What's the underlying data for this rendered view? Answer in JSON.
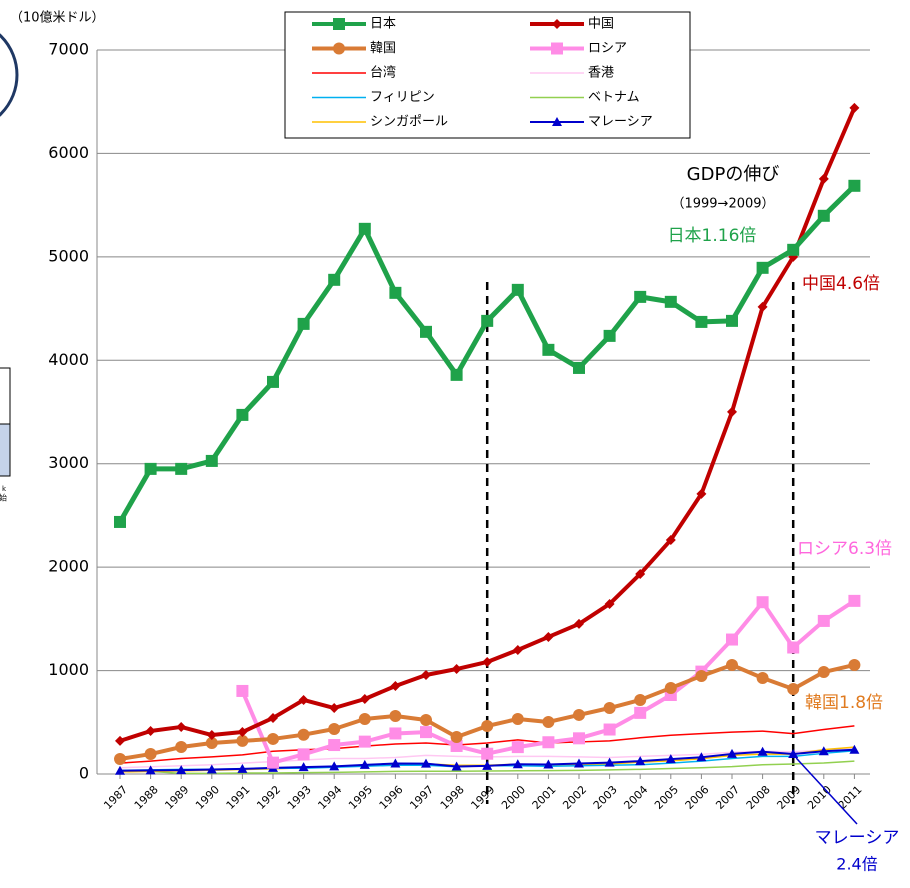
{
  "chart_data": {
    "type": "line",
    "unit_label": "（10億米ドル）",
    "categories": [
      "1987",
      "1988",
      "1989",
      "1990",
      "1991",
      "1992",
      "1993",
      "1994",
      "1995",
      "1996",
      "1997",
      "1998",
      "1999",
      "2000",
      "2001",
      "2002",
      "2003",
      "2004",
      "2005",
      "2006",
      "2007",
      "2008",
      "2009",
      "2010",
      "2011"
    ],
    "ylim": [
      0,
      7000
    ],
    "yticks": [
      0,
      1000,
      2000,
      3000,
      4000,
      5000,
      6000,
      7000
    ],
    "grid": true,
    "reference_lines": [
      "1999",
      "2009"
    ],
    "series": [
      {
        "name": "日本",
        "color": "#1fa24a",
        "marker": "square",
        "width": 5,
        "values": [
          2437,
          2950,
          2950,
          3027,
          3472,
          3791,
          4352,
          4778,
          5271,
          4652,
          4275,
          3859,
          4381,
          4681,
          4101,
          3926,
          4236,
          4613,
          4565,
          4371,
          4381,
          4894,
          5068,
          5397,
          5687
        ]
      },
      {
        "name": "中国",
        "color": "#c00000",
        "marker": "diamond",
        "width": 4,
        "values": [
          320,
          416,
          455,
          377,
          406,
          542,
          716,
          638,
          725,
          851,
          957,
          1015,
          1083,
          1199,
          1325,
          1451,
          1644,
          1934,
          2263,
          2708,
          3501,
          4516,
          5000,
          5754,
          6441
        ]
      },
      {
        "name": "韓国",
        "color": "#d97b35",
        "marker": "circle",
        "width": 4,
        "values": [
          145,
          193,
          261,
          300,
          320,
          339,
          380,
          435,
          532,
          561,
          522,
          358,
          464,
          532,
          503,
          571,
          638,
          716,
          832,
          948,
          1054,
          928,
          822,
          986,
          1054
        ]
      },
      {
        "name": "ロシア",
        "color": "#ff8ce6",
        "marker": "square",
        "width": 4,
        "values": [
          null,
          null,
          null,
          null,
          803,
          110,
          190,
          280,
          313,
          392,
          405,
          271,
          196,
          260,
          307,
          345,
          430,
          591,
          764,
          990,
          1300,
          1661,
          1223,
          1480,
          1674
        ]
      },
      {
        "name": "台湾",
        "color": "#ff0000",
        "marker": "none",
        "width": 1.5,
        "values": [
          105,
          125,
          150,
          165,
          185,
          220,
          235,
          245,
          270,
          290,
          300,
          280,
          300,
          330,
          300,
          310,
          320,
          350,
          375,
          390,
          405,
          415,
          390,
          430,
          465
        ]
      },
      {
        "name": "香港",
        "color": "#ffc8f2",
        "marker": "none",
        "width": 1.5,
        "values": [
          60,
          70,
          80,
          90,
          105,
          120,
          135,
          150,
          150,
          160,
          180,
          170,
          165,
          170,
          170,
          165,
          160,
          170,
          180,
          190,
          210,
          220,
          215,
          230,
          245
        ]
      },
      {
        "name": "フィリピン",
        "color": "#00b0f0",
        "marker": "none",
        "width": 1.5,
        "values": [
          35,
          40,
          45,
          45,
          50,
          55,
          55,
          65,
          75,
          85,
          85,
          70,
          80,
          80,
          75,
          80,
          85,
          90,
          105,
          125,
          150,
          170,
          170,
          200,
          225
        ]
      },
      {
        "name": "ベトナム",
        "color": "#92d050",
        "marker": "none",
        "width": 1.5,
        "values": [
          36,
          25,
          6,
          6,
          10,
          10,
          13,
          16,
          21,
          25,
          27,
          27,
          29,
          31,
          33,
          35,
          40,
          45,
          53,
          61,
          71,
          90,
          97,
          106,
          124
        ]
      },
      {
        "name": "シンガポール",
        "color": "#ffc000",
        "marker": "none",
        "width": 1.5,
        "values": [
          20,
          25,
          30,
          36,
          43,
          50,
          60,
          72,
          88,
          93,
          98,
          85,
          85,
          95,
          89,
          92,
          97,
          115,
          127,
          147,
          180,
          192,
          192,
          236,
          260
        ]
      },
      {
        "name": "マレーシア",
        "color": "#0000cc",
        "marker": "triangle",
        "width": 2,
        "values": [
          32,
          35,
          38,
          44,
          49,
          59,
          66,
          74,
          88,
          101,
          100,
          72,
          79,
          94,
          92,
          101,
          110,
          125,
          144,
          162,
          194,
          215,
          193,
          220,
          235
        ]
      }
    ],
    "annotations": [
      {
        "text": "GDPの伸び",
        "color": "#000000"
      },
      {
        "text": "（1999→2009）",
        "color": "#000000"
      },
      {
        "text": "日本1.16倍",
        "color": "#1fa24a"
      },
      {
        "text": "中国4.6倍",
        "color": "#c00000"
      },
      {
        "text": "ロシア6.3倍",
        "color": "#ff66dd"
      },
      {
        "text": "韓国1.8倍",
        "color": "#e07b20"
      },
      {
        "text": "マレーシア",
        "color": "#0000cc"
      },
      {
        "text": "2.4倍",
        "color": "#0000cc"
      }
    ],
    "fragments": [
      "k",
      "始"
    ]
  }
}
